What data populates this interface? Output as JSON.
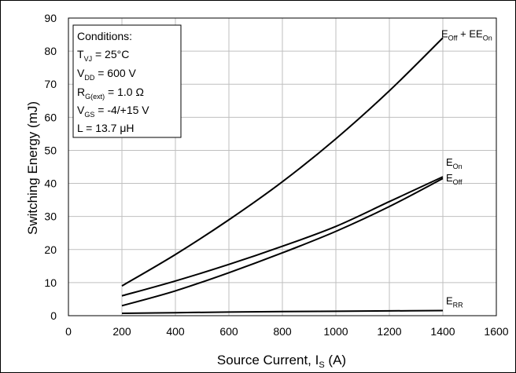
{
  "chart_data": {
    "type": "line",
    "title": "",
    "xlabel": {
      "main": "Source Current, I",
      "sub": "S",
      "unit": " (A)"
    },
    "ylabel": "Switching Energy (mJ)",
    "xlim": [
      0,
      1600
    ],
    "ylim": [
      0,
      90
    ],
    "xticks": [
      0,
      200,
      400,
      600,
      800,
      1000,
      1200,
      1400,
      1600
    ],
    "yticks": [
      0,
      10,
      20,
      30,
      40,
      50,
      60,
      70,
      80,
      90
    ],
    "grid": true,
    "series": [
      {
        "label_main": "E",
        "label_sub": "Off",
        "label_mid": " + E",
        "label_sub2": "On",
        "x": [
          200,
          400,
          600,
          800,
          1000,
          1200,
          1400
        ],
        "y": [
          9,
          18.5,
          29,
          40.5,
          53.5,
          68,
          84
        ]
      },
      {
        "label_main": "E",
        "label_sub": "On",
        "x": [
          200,
          400,
          600,
          800,
          1000,
          1200,
          1400
        ],
        "y": [
          6,
          10.5,
          15.5,
          21,
          27,
          34.5,
          42
        ]
      },
      {
        "label_main": "E",
        "label_sub": "Off",
        "x": [
          200,
          400,
          600,
          800,
          1000,
          1200,
          1400
        ],
        "y": [
          3,
          7.5,
          13,
          19,
          25.5,
          33,
          41.5
        ]
      },
      {
        "label_main": "E",
        "label_sub": "RR",
        "x": [
          200,
          400,
          600,
          800,
          1000,
          1200,
          1400
        ],
        "y": [
          0.7,
          0.9,
          1.1,
          1.25,
          1.35,
          1.45,
          1.55
        ]
      }
    ],
    "conditions": {
      "heading": "Conditions:",
      "lines": [
        {
          "main": "T",
          "sub": "VJ",
          "rest": " = 25°C"
        },
        {
          "main": "V",
          "sub": "DD",
          "rest": " = 600 V"
        },
        {
          "main": "R",
          "sub": "G(ext)",
          "rest": " = 1.0 Ω"
        },
        {
          "main": "V",
          "sub": "GS",
          "rest": " = -4/+15 V"
        },
        {
          "main": "L = 13.7 μH",
          "sub": "",
          "rest": ""
        }
      ]
    }
  }
}
